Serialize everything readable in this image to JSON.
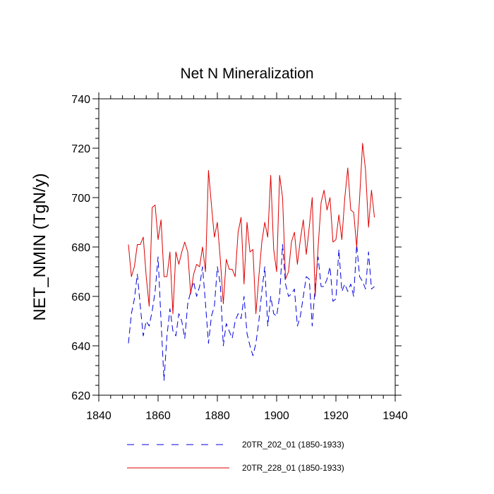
{
  "chart_data": {
    "type": "line",
    "title": "Net N Mineralization",
    "xlabel": "",
    "ylabel": "NET_NMIN  (TgN/y)",
    "xlim": [
      1840,
      1940
    ],
    "ylim": [
      620,
      740
    ],
    "xticks": [
      1840,
      1860,
      1880,
      1900,
      1920,
      1940
    ],
    "yticks": [
      620,
      640,
      660,
      680,
      700,
      720,
      740
    ],
    "x_minor_step": 4,
    "y_minor_step": 4,
    "grid": false,
    "legend_position": "bottom",
    "x": [
      1850,
      1851,
      1852,
      1853,
      1854,
      1855,
      1856,
      1857,
      1858,
      1859,
      1860,
      1861,
      1862,
      1863,
      1864,
      1865,
      1866,
      1867,
      1868,
      1869,
      1870,
      1871,
      1872,
      1873,
      1874,
      1875,
      1876,
      1877,
      1878,
      1879,
      1880,
      1881,
      1882,
      1883,
      1884,
      1885,
      1886,
      1887,
      1888,
      1889,
      1890,
      1891,
      1892,
      1893,
      1894,
      1895,
      1896,
      1897,
      1898,
      1899,
      1900,
      1901,
      1902,
      1903,
      1904,
      1905,
      1906,
      1907,
      1908,
      1909,
      1910,
      1911,
      1912,
      1913,
      1914,
      1915,
      1916,
      1917,
      1918,
      1919,
      1920,
      1921,
      1922,
      1923,
      1924,
      1925,
      1926,
      1927,
      1928,
      1929,
      1930,
      1931,
      1932,
      1933
    ],
    "series": [
      {
        "name": "20TR_202_01 (1850-1933)",
        "color": "#0000dd",
        "dash": "dashed",
        "values": [
          641,
          653,
          659,
          669,
          656,
          644,
          650,
          648,
          654,
          662,
          676,
          650,
          626,
          644,
          655,
          646,
          644,
          653,
          650,
          643,
          657,
          662,
          666,
          660,
          664,
          672,
          657,
          641,
          652,
          656,
          672,
          665,
          640,
          649,
          646,
          643,
          650,
          653,
          651,
          660,
          645,
          640,
          636,
          641,
          650,
          662,
          672,
          648,
          660,
          653,
          652,
          660,
          681,
          665,
          660,
          661,
          663,
          648,
          652,
          660,
          668,
          667,
          648,
          664,
          676,
          664,
          664,
          667,
          672,
          658,
          659,
          679,
          662,
          665,
          662,
          665,
          660,
          681,
          668,
          666,
          663,
          678,
          663,
          664
        ]
      },
      {
        "name": "20TR_228_01 (1850-1933)",
        "color": "#dd0000",
        "dash": "solid",
        "values": [
          681,
          668,
          672,
          681,
          681,
          684,
          668,
          656,
          696,
          697,
          683,
          691,
          668,
          668,
          678,
          653,
          678,
          673,
          678,
          682,
          678,
          661,
          669,
          673,
          672,
          680,
          670,
          711,
          697,
          684,
          690,
          675,
          657,
          675,
          671,
          671,
          668,
          686,
          692,
          665,
          690,
          678,
          679,
          653,
          668,
          682,
          690,
          684,
          709,
          679,
          670,
          709,
          700,
          667,
          670,
          682,
          686,
          673,
          683,
          691,
          677,
          688,
          700,
          660,
          680,
          698,
          703,
          695,
          700,
          682,
          683,
          693,
          683,
          700,
          712,
          695,
          694,
          680,
          700,
          722,
          711,
          688,
          703,
          692
        ]
      }
    ],
    "legend": [
      {
        "label": "20TR_202_01 (1850-1933)",
        "color": "#0000dd",
        "dash": "dashed"
      },
      {
        "label": "20TR_228_01 (1850-1933)",
        "color": "#dd0000",
        "dash": "solid"
      }
    ]
  }
}
